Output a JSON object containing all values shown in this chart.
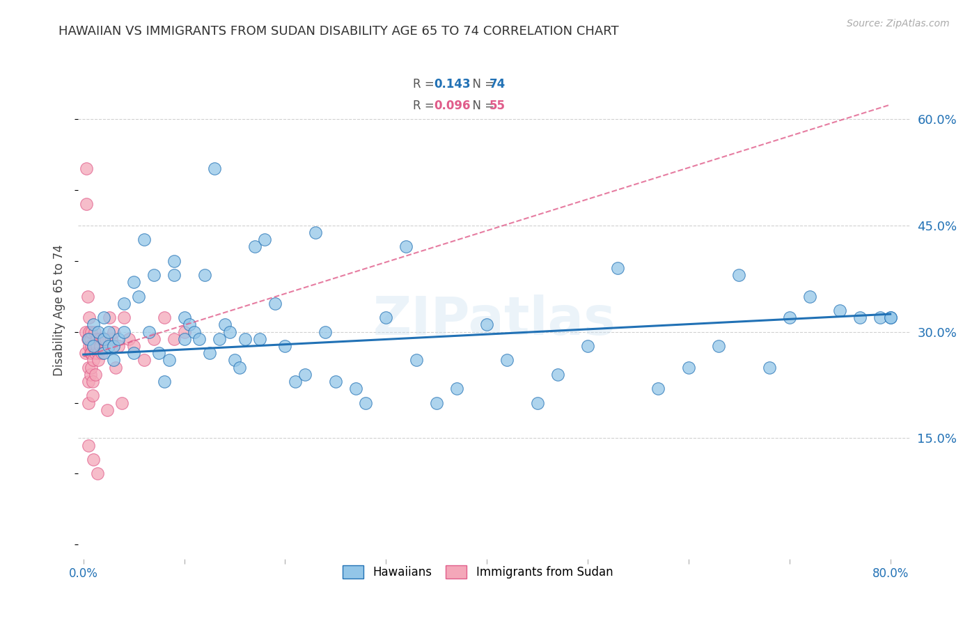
{
  "title": "HAWAIIAN VS IMMIGRANTS FROM SUDAN DISABILITY AGE 65 TO 74 CORRELATION CHART",
  "source": "Source: ZipAtlas.com",
  "ylabel": "Disability Age 65 to 74",
  "ytick_labels": [
    "60.0%",
    "45.0%",
    "30.0%",
    "15.0%"
  ],
  "ytick_values": [
    0.6,
    0.45,
    0.3,
    0.15
  ],
  "xlim": [
    -0.005,
    0.82
  ],
  "ylim": [
    -0.02,
    0.68
  ],
  "color_blue": "#93c6e8",
  "color_pink": "#f4a7b9",
  "color_blue_line": "#2171b5",
  "color_pink_line": "#e05c8a",
  "hawaiians_x": [
    0.005,
    0.01,
    0.01,
    0.015,
    0.02,
    0.02,
    0.02,
    0.025,
    0.025,
    0.03,
    0.03,
    0.035,
    0.04,
    0.04,
    0.05,
    0.05,
    0.055,
    0.06,
    0.065,
    0.07,
    0.075,
    0.08,
    0.085,
    0.09,
    0.09,
    0.1,
    0.1,
    0.105,
    0.11,
    0.115,
    0.12,
    0.125,
    0.13,
    0.135,
    0.14,
    0.145,
    0.15,
    0.155,
    0.16,
    0.17,
    0.175,
    0.18,
    0.19,
    0.2,
    0.21,
    0.22,
    0.23,
    0.24,
    0.25,
    0.27,
    0.28,
    0.3,
    0.32,
    0.33,
    0.35,
    0.37,
    0.4,
    0.42,
    0.45,
    0.47,
    0.5,
    0.53,
    0.57,
    0.6,
    0.63,
    0.65,
    0.68,
    0.7,
    0.72,
    0.75,
    0.77,
    0.79,
    0.8,
    0.8
  ],
  "hawaiians_y": [
    0.29,
    0.31,
    0.28,
    0.3,
    0.32,
    0.29,
    0.27,
    0.3,
    0.28,
    0.28,
    0.26,
    0.29,
    0.34,
    0.3,
    0.37,
    0.27,
    0.35,
    0.43,
    0.3,
    0.38,
    0.27,
    0.23,
    0.26,
    0.4,
    0.38,
    0.32,
    0.29,
    0.31,
    0.3,
    0.29,
    0.38,
    0.27,
    0.53,
    0.29,
    0.31,
    0.3,
    0.26,
    0.25,
    0.29,
    0.42,
    0.29,
    0.43,
    0.34,
    0.28,
    0.23,
    0.24,
    0.44,
    0.3,
    0.23,
    0.22,
    0.2,
    0.32,
    0.42,
    0.26,
    0.2,
    0.22,
    0.31,
    0.26,
    0.2,
    0.24,
    0.28,
    0.39,
    0.22,
    0.25,
    0.28,
    0.38,
    0.25,
    0.32,
    0.35,
    0.33,
    0.32,
    0.32,
    0.32,
    0.32
  ],
  "sudan_x": [
    0.002,
    0.002,
    0.003,
    0.003,
    0.004,
    0.004,
    0.005,
    0.005,
    0.005,
    0.005,
    0.006,
    0.006,
    0.006,
    0.007,
    0.007,
    0.007,
    0.008,
    0.008,
    0.008,
    0.008,
    0.009,
    0.009,
    0.01,
    0.01,
    0.01,
    0.011,
    0.011,
    0.012,
    0.012,
    0.013,
    0.013,
    0.014,
    0.015,
    0.015,
    0.016,
    0.017,
    0.018,
    0.019,
    0.02,
    0.022,
    0.024,
    0.026,
    0.028,
    0.03,
    0.032,
    0.035,
    0.038,
    0.04,
    0.045,
    0.05,
    0.06,
    0.07,
    0.08,
    0.09,
    0.1
  ],
  "sudan_y": [
    0.27,
    0.3,
    0.53,
    0.48,
    0.29,
    0.35,
    0.25,
    0.23,
    0.2,
    0.14,
    0.32,
    0.3,
    0.28,
    0.29,
    0.27,
    0.24,
    0.3,
    0.28,
    0.27,
    0.25,
    0.23,
    0.21,
    0.28,
    0.26,
    0.12,
    0.3,
    0.28,
    0.27,
    0.24,
    0.29,
    0.28,
    0.1,
    0.27,
    0.26,
    0.29,
    0.28,
    0.27,
    0.29,
    0.29,
    0.29,
    0.19,
    0.32,
    0.29,
    0.3,
    0.25,
    0.28,
    0.2,
    0.32,
    0.29,
    0.28,
    0.26,
    0.29,
    0.32,
    0.29,
    0.3
  ],
  "blue_line_x": [
    0.0,
    0.8
  ],
  "blue_line_y": [
    0.268,
    0.325
  ],
  "pink_line_x": [
    0.0,
    0.8
  ],
  "pink_line_y": [
    0.265,
    0.62
  ],
  "watermark": "ZIPatlas",
  "background_color": "#ffffff",
  "grid_color": "#d0d0d0"
}
